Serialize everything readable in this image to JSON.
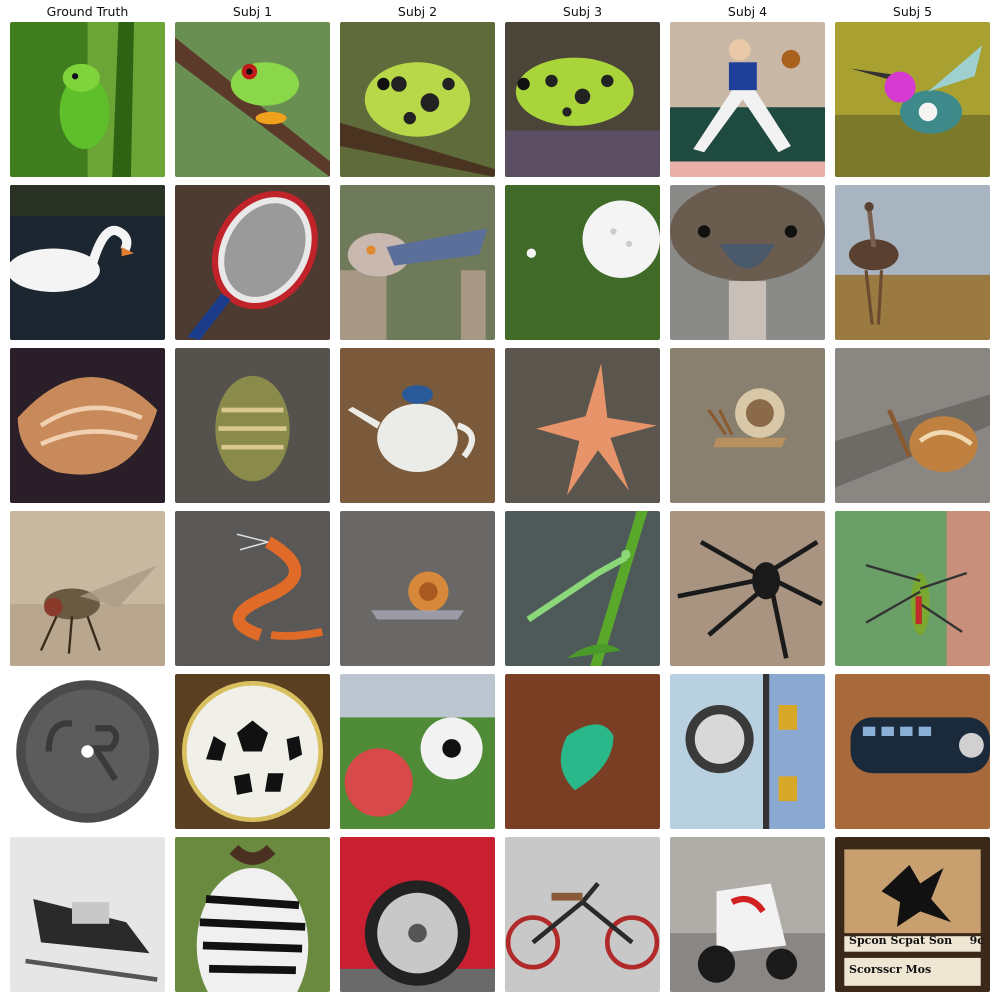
{
  "headers": [
    "Ground Truth",
    "Subj 1",
    "Subj 2",
    "Subj 3",
    "Subj 4",
    "Subj 5"
  ],
  "rows": [
    [
      "green-lizard",
      "tree-frog",
      "spotted-frog",
      "spotted-frog-on-rock",
      "baseball-pitcher",
      "hummingbird-with-flower"
    ],
    [
      "swan",
      "tennis-racket",
      "ostrich-head",
      "golf-ball",
      "ostrich-face",
      "ostrich-field"
    ],
    [
      "seashell",
      "shell-object",
      "teapot",
      "starfish",
      "snail",
      "snail-on-wood"
    ],
    [
      "fly",
      "centipede",
      "snail-swimming",
      "mantis",
      "spider",
      "grasshopper"
    ],
    [
      "coin",
      "soccer-ball",
      "balls-on-field",
      "guitar-pick",
      "door-knob",
      "remote-control"
    ],
    [
      "snowmobile",
      "zebra",
      "red-car-wheel",
      "tricycle",
      "scooter",
      "card"
    ]
  ],
  "card_text": {
    "title": "Spcon Scpat Son",
    "number": "9c",
    "subtitle": "Scorsscr Mos"
  },
  "colors": {
    "background": "#ffffff",
    "header_text": "#111111"
  }
}
